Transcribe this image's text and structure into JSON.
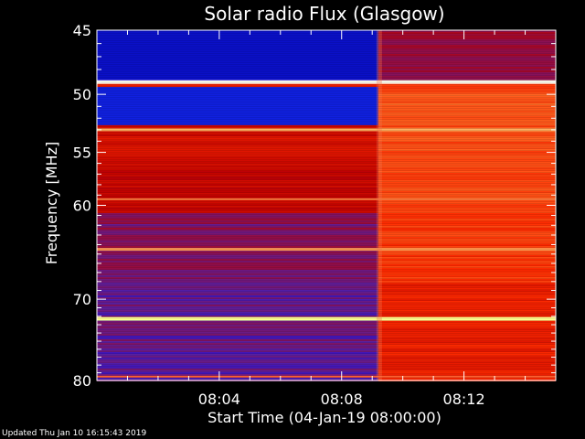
{
  "chart_data": {
    "type": "heatmap",
    "title": "Solar radio Flux (Glasgow)",
    "xlabel": "Start Time (04-Jan-19 08:00:00)",
    "ylabel": "Frequency [MHz]",
    "x_unit": "minutes",
    "x_range": [
      0,
      15
    ],
    "y_range": [
      45,
      80
    ],
    "y_scale": "log",
    "x_ticks": [
      {
        "value": 4,
        "label": "08:04"
      },
      {
        "value": 8,
        "label": "08:08"
      },
      {
        "value": 12,
        "label": "08:12"
      }
    ],
    "y_ticks": [
      {
        "value": 45,
        "label": "45"
      },
      {
        "value": 50,
        "label": "50"
      },
      {
        "value": 55,
        "label": "55"
      },
      {
        "value": 60,
        "label": "60"
      },
      {
        "value": 70,
        "label": "70"
      },
      {
        "value": 80,
        "label": "80"
      }
    ],
    "transition_time_min": 9.2,
    "colormap": [
      "#0000ff",
      "#5a1fa0",
      "#c00000",
      "#ff2a00",
      "#ff9a40",
      "#ffffc0"
    ],
    "colors": {
      "low": "#0000ff",
      "high": "#ffffe0",
      "background": "#000000",
      "axis": "#ffffff"
    }
  },
  "footer": {
    "updated": "Updated Thu Jan 10 16:15:43 2019"
  }
}
